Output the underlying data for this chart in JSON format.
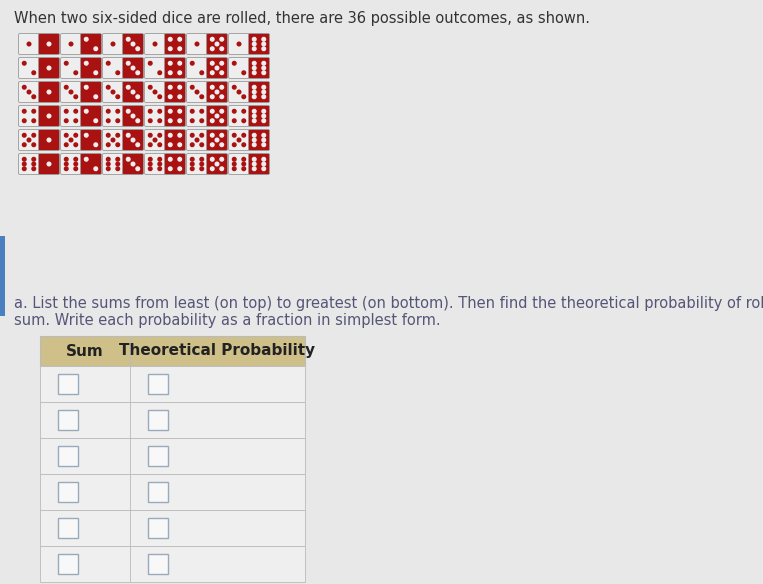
{
  "title_text": "When two six-sided dice are rolled, there are 36 possible outcomes, as shown.",
  "instruction_line1": "a. List the sums from least (on top) to greatest (on bottom). Then find the theoretical probability of rolling each",
  "instruction_line2": "sum. Write each probability as a fraction in simplest form.",
  "table_header": [
    "Sum",
    "Theoretical Probability"
  ],
  "num_rows": 6,
  "page_bg": "#d8d8d8",
  "content_bg": "#e8e8e8",
  "table_header_bg": "#cfc08a",
  "table_row_bg": "#efefef",
  "table_border_color": "#bbbbbb",
  "text_color": "#333333",
  "instruction_color": "#555577",
  "die_bg_light": "#eeeeee",
  "die_bg_dark": "#aa1111",
  "die_dot_light": "#aa1111",
  "die_dot_dark": "#eeeeee",
  "die_border": "#999999",
  "blue_bar_color": "#4a7fc0",
  "title_fontsize": 10.5,
  "instruction_fontsize": 10.5,
  "header_fontsize": 11,
  "checkbox_border": "#99aabb",
  "checkbox_bg": "#f8f8f8"
}
